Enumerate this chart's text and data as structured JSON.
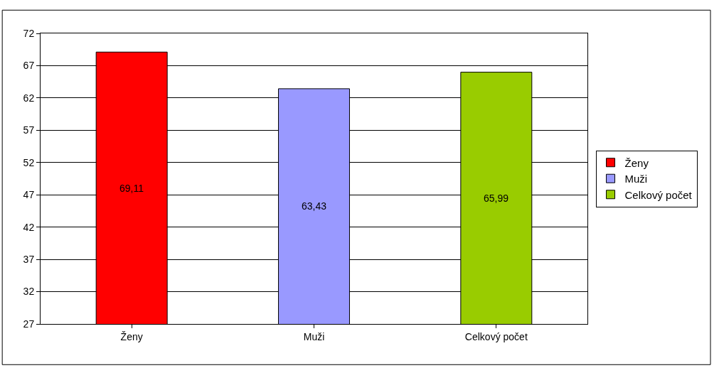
{
  "chart_data": {
    "type": "bar",
    "categories": [
      "Ženy",
      "Muži",
      "Celkový počet"
    ],
    "series": [
      {
        "name": "Ženy",
        "color": "#ff0000",
        "values": [
          69.11,
          null,
          null
        ],
        "value_labels": [
          "69,11",
          null,
          null
        ]
      },
      {
        "name": "Muži",
        "color": "#9999ff",
        "values": [
          null,
          63.43,
          null
        ],
        "value_labels": [
          null,
          "63,43",
          null
        ]
      },
      {
        "name": "Celkový počet",
        "color": "#99cc00",
        "values": [
          null,
          null,
          65.99
        ],
        "value_labels": [
          null,
          null,
          "65,99"
        ]
      }
    ],
    "ylim": [
      27,
      72
    ],
    "yticks": [
      27,
      32,
      37,
      42,
      47,
      52,
      57,
      62,
      67,
      72
    ],
    "grid": "y",
    "legend": "right"
  }
}
